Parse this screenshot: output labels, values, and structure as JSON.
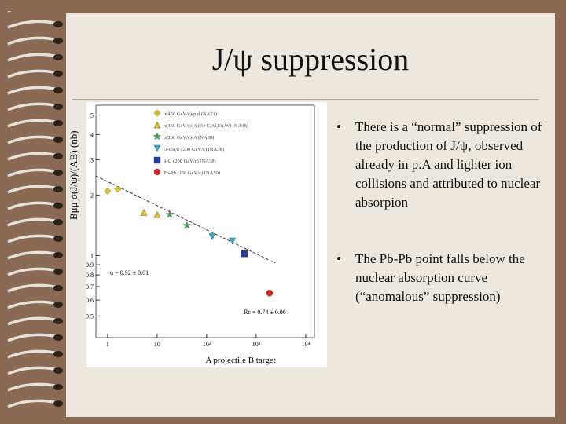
{
  "slide": {
    "title": "J/ψ suppression",
    "bullets": [
      "There is a “normal” suppression of the production of J/ψ, observed already in p.A and lighter ion collisions and attributed to nuclear absorpion",
      "The Pb-Pb point falls below the nuclear absorption curve (“anomalous” suppression)"
    ]
  },
  "chart_data": {
    "type": "scatter",
    "y_label": "Bμμ σ(J/ψ)/(AB) (nb)",
    "x_label": "A projectile B target",
    "log_x": true,
    "log_y": true,
    "xlim": [
      0.58,
      15000
    ],
    "ylim": [
      0.39,
      5.6
    ],
    "xticks": [
      1,
      10,
      {
        "value": 100,
        "label": "10²"
      },
      {
        "value": 1000,
        "label": "10³"
      },
      {
        "value": 10000,
        "label": "10⁴"
      }
    ],
    "yticks": [
      5,
      4,
      3,
      2,
      1,
      0.9,
      0.8,
      0.7,
      0.6,
      0.5
    ],
    "annotations": [
      "α = 0.92 ± 0.01",
      "Rc = 0.74 ± 0.06"
    ],
    "series": [
      {
        "name": "p(450 GeV/c)-p,d (NA51)",
        "color": "#e8c21a",
        "marker": "diamond",
        "x": [
          1,
          1.6
        ],
        "values": [
          2.09,
          2.14
        ]
      },
      {
        "name": "p(450 GeV/c)-A (A=C,Al,Cu,W) (NA38)",
        "color": "#e8c21a",
        "marker": "triangle",
        "x": [
          5.4,
          10
        ],
        "values": [
          1.64,
          1.6
        ]
      },
      {
        "name": "p(200 GeV/c)-A (NA38)",
        "color": "#3bb34a",
        "marker": "star",
        "x": [
          18,
          40
        ],
        "values": [
          1.6,
          1.41
        ]
      },
      {
        "name": "O-Cu,U (200 GeV/c) (NA38)",
        "color": "#2ab0d8",
        "marker": "dtriangle",
        "x": [
          130,
          330
        ],
        "values": [
          1.24,
          1.18
        ]
      },
      {
        "name": "S-U (200 GeV/c) (NA38)",
        "color": "#1f3aa0",
        "marker": "square",
        "x": [
          580
        ],
        "values": [
          1.02
        ]
      },
      {
        "name": "Pb-Pb (158 GeV/c) (NA50)",
        "color": "#e02020",
        "marker": "circle",
        "x": [
          1860
        ],
        "values": [
          0.65
        ]
      }
    ]
  }
}
